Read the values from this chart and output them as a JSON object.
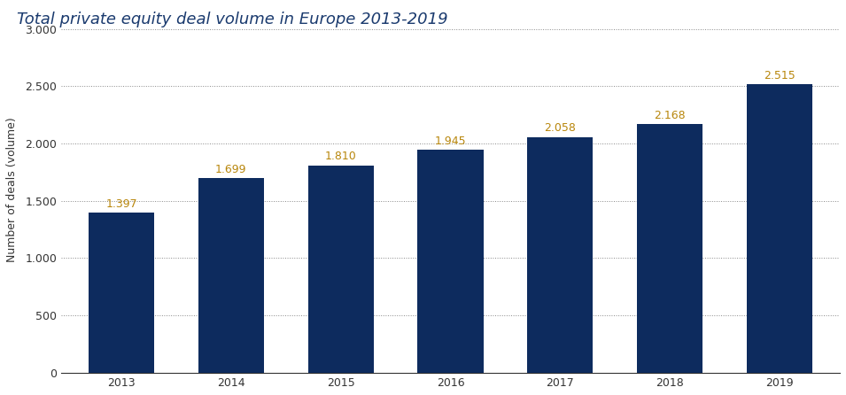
{
  "title": "Total private equity deal volume in Europe 2013-2019",
  "categories": [
    "2013",
    "2014",
    "2015",
    "2016",
    "2017",
    "2018",
    "2019"
  ],
  "values": [
    1397,
    1699,
    1810,
    1945,
    2058,
    2168,
    2515
  ],
  "bar_labels": [
    "1.397",
    "1.699",
    "1.810",
    "1.945",
    "2.058",
    "2.168",
    "2.515"
  ],
  "bar_color": "#0d2b5e",
  "ylabel": "Number of deals (volume)",
  "yticks": [
    0,
    500,
    1000,
    1500,
    2000,
    2500,
    3000
  ],
  "ytick_labels": [
    "0",
    "500",
    "1.000",
    "1.500",
    "2.000",
    "2.500",
    "3.000"
  ],
  "ylim": [
    0,
    3200
  ],
  "title_fontsize": 13,
  "title_color": "#1a3a6e",
  "tick_fontsize": 9,
  "bar_label_fontsize": 9,
  "bar_label_color": "#b8860b",
  "background_color": "#ffffff",
  "grid_color": "#888888",
  "bar_width": 0.6
}
